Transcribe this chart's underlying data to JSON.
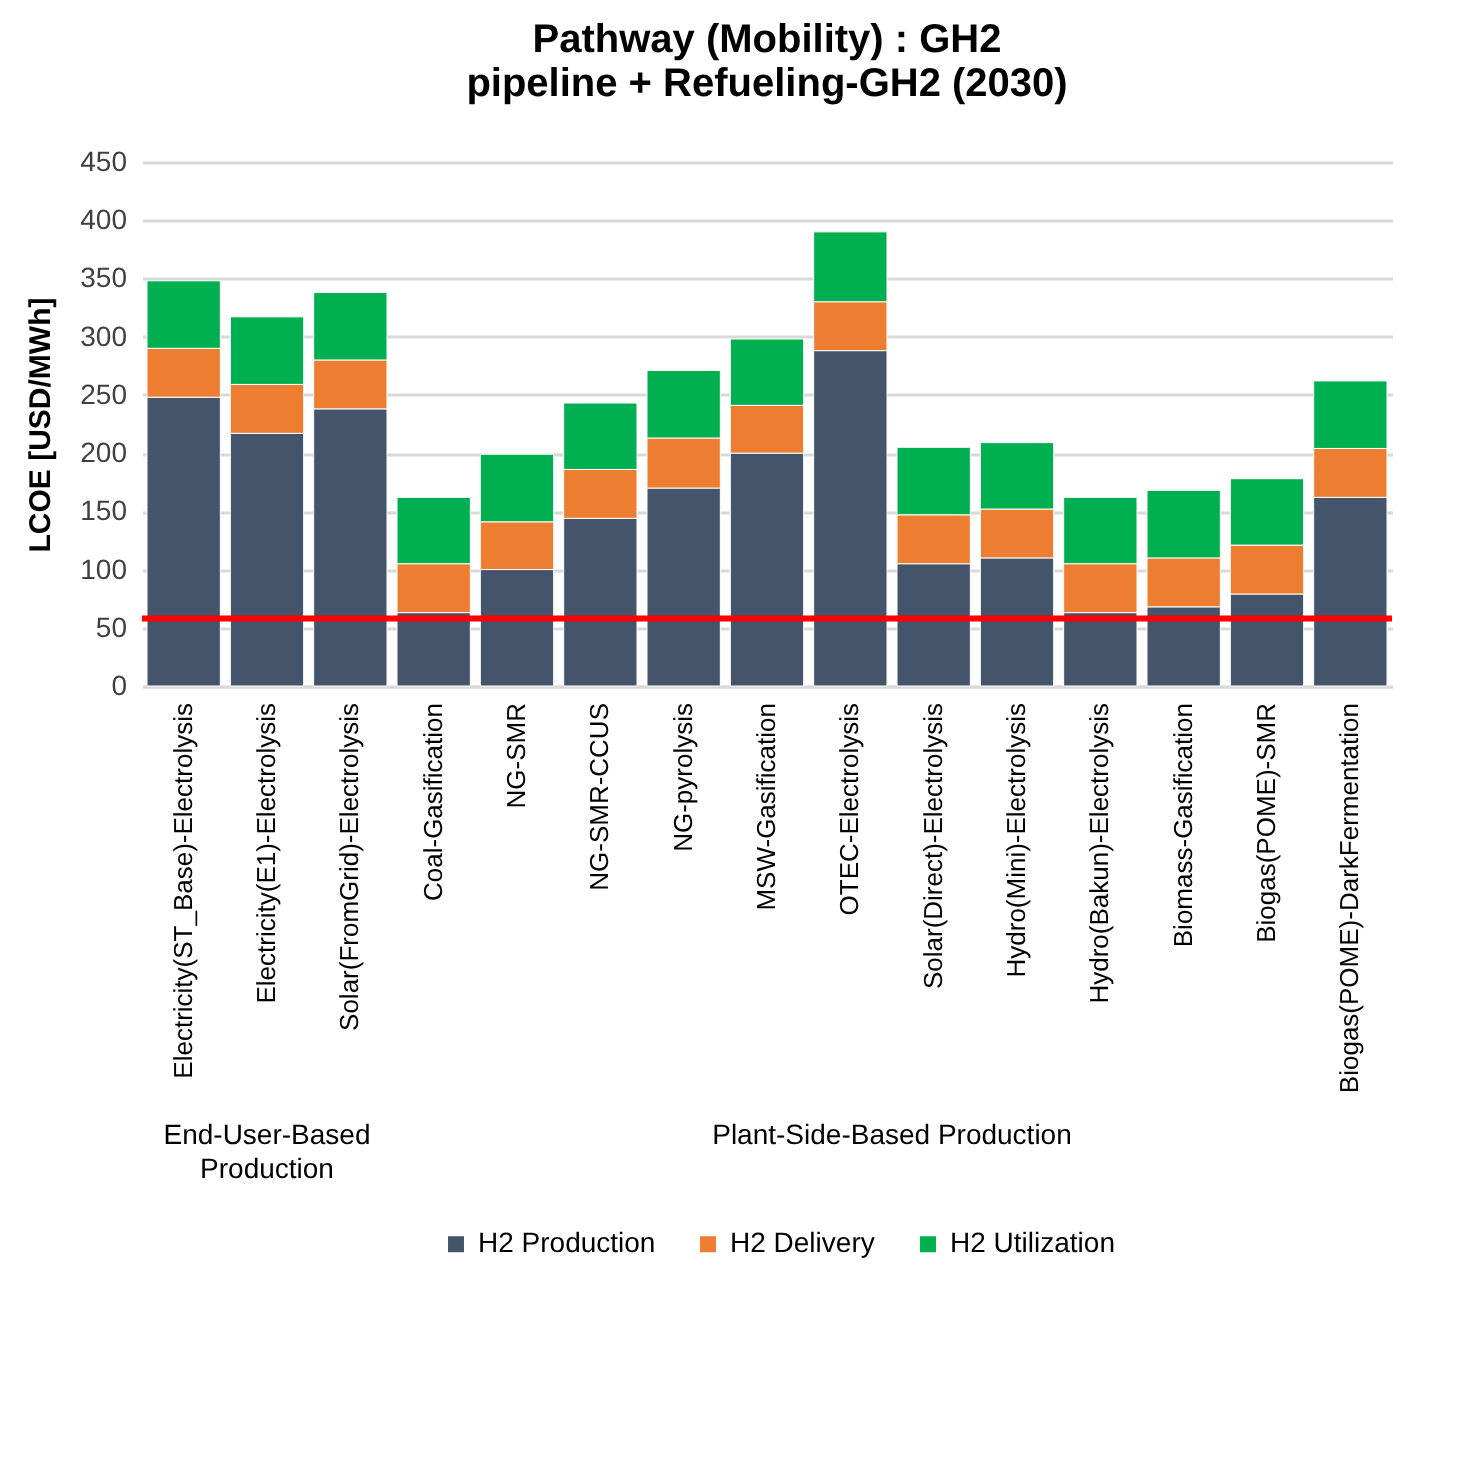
{
  "chart_data": {
    "type": "bar",
    "title": "Pathway (Mobility) : GH2 pipeline + Refueling-GH2 (2030)",
    "ylabel": "LCOE [USD/MWh]",
    "categories": [
      "Electricity(ST_Base)-Electrolysis",
      "Electricity(E1)-Electrolysis",
      "Solar(FromGrid)-Electrolysis",
      "Coal-Gasification",
      "NG-SMR",
      "NG-SMR-CCUS",
      "NG-pyrolysis",
      "MSW-Gasification",
      "OTEC-Electrolysis",
      "Solar(Direct)-Electrolysis",
      "Hydro(Mini)-Electrolysis",
      "Hydro(Bakun)-Electrolysis",
      "Biomass-Gasification",
      "Biogas(POME)-SMR",
      "Biogas(POME)-DarkFermentation"
    ],
    "stacked": true,
    "series": [
      {
        "name": "H2 Production",
        "color": "#44546a",
        "values": [
          248,
          217,
          238,
          63,
          100,
          144,
          170,
          200,
          288,
          105,
          110,
          63,
          68,
          79,
          162
        ]
      },
      {
        "name": "H2 Delivery",
        "color": "#ed7d31",
        "values": [
          42,
          42,
          42,
          42,
          41,
          42,
          43,
          41,
          42,
          42,
          42,
          42,
          42,
          42,
          42
        ]
      },
      {
        "name": "H2 Utilization",
        "color": "#00b050",
        "values": [
          58,
          58,
          58,
          57,
          58,
          57,
          58,
          57,
          60,
          58,
          57,
          57,
          58,
          57,
          58
        ]
      }
    ],
    "ylim": [
      0,
      450
    ],
    "yticks": [
      0,
      50,
      100,
      150,
      200,
      250,
      300,
      350,
      400,
      450
    ],
    "grid": "y",
    "legend": "bottom",
    "ref_lines": [
      {
        "axis": "y",
        "value": 58,
        "color": "#ff0000"
      }
    ],
    "annotations": [
      "End-User-Based Production",
      "Plant-Side-Based Production"
    ]
  }
}
